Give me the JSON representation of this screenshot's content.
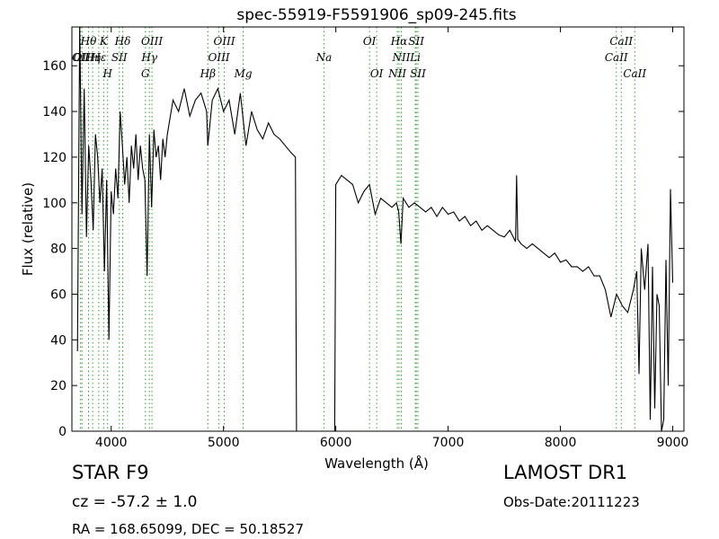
{
  "chart_data": {
    "type": "line",
    "title": "spec-55919-F5591906_sp09-245.fits",
    "xlabel": "Wavelength (Å)",
    "ylabel": "Flux (relative)",
    "xlim": [
      3650,
      9100
    ],
    "ylim": [
      0,
      177
    ],
    "xticks": [
      4000,
      5000,
      6000,
      7000,
      8000,
      9000
    ],
    "yticks": [
      0,
      20,
      40,
      60,
      80,
      100,
      120,
      140,
      160
    ],
    "grid": false,
    "legend": "none",
    "series": [
      {
        "color": "#000000",
        "x": [
          3700,
          3720,
          3740,
          3760,
          3780,
          3800,
          3820,
          3840,
          3860,
          3880,
          3900,
          3920,
          3940,
          3960,
          3980,
          4000,
          4020,
          4040,
          4060,
          4080,
          4100,
          4120,
          4140,
          4160,
          4180,
          4200,
          4220,
          4240,
          4260,
          4280,
          4300,
          4320,
          4340,
          4360,
          4380,
          4400,
          4420,
          4440,
          4460,
          4480,
          4500,
          4550,
          4600,
          4650,
          4700,
          4750,
          4800,
          4850,
          4860,
          4900,
          4950,
          5000,
          5050,
          5100,
          5150,
          5200,
          5250,
          5300,
          5350,
          5400,
          5450,
          5500,
          5550,
          5600,
          5640,
          5650,
          5660,
          5700,
          5800,
          5900,
          5980,
          5990,
          6000,
          6050,
          6100,
          6150,
          6200,
          6250,
          6300,
          6350,
          6400,
          6450,
          6500,
          6540,
          6560,
          6580,
          6600,
          6650,
          6700,
          6750,
          6800,
          6850,
          6900,
          6950,
          7000,
          7050,
          7100,
          7150,
          7200,
          7250,
          7300,
          7350,
          7400,
          7450,
          7500,
          7550,
          7600,
          7610,
          7620,
          7650,
          7700,
          7750,
          7800,
          7850,
          7900,
          7950,
          8000,
          8050,
          8100,
          8150,
          8200,
          8250,
          8300,
          8350,
          8400,
          8450,
          8500,
          8550,
          8600,
          8650,
          8680,
          8700,
          8720,
          8750,
          8780,
          8800,
          8820,
          8840,
          8860,
          8880,
          8900,
          8920,
          8940,
          8960,
          8980,
          9000
        ],
        "y": [
          35,
          178,
          95,
          150,
          85,
          125,
          110,
          88,
          130,
          120,
          100,
          115,
          70,
          110,
          40,
          105,
          95,
          115,
          102,
          140,
          125,
          108,
          120,
          100,
          125,
          115,
          130,
          110,
          125,
          115,
          110,
          68,
          130,
          98,
          132,
          120,
          125,
          110,
          128,
          120,
          130,
          145,
          140,
          150,
          138,
          145,
          148,
          140,
          125,
          145,
          150,
          140,
          145,
          130,
          148,
          125,
          140,
          132,
          128,
          135,
          130,
          128,
          125,
          122,
          120,
          0,
          0,
          0,
          0,
          0,
          0,
          0,
          108,
          112,
          110,
          108,
          100,
          105,
          108,
          95,
          102,
          100,
          98,
          100,
          96,
          82,
          102,
          98,
          100,
          98,
          96,
          98,
          94,
          98,
          95,
          96,
          92,
          94,
          90,
          92,
          88,
          90,
          88,
          86,
          85,
          88,
          83,
          112,
          84,
          82,
          80,
          82,
          80,
          78,
          76,
          78,
          74,
          75,
          72,
          72,
          70,
          72,
          68,
          68,
          62,
          50,
          60,
          55,
          52,
          62,
          70,
          25,
          80,
          62,
          82,
          5,
          72,
          10,
          60,
          55,
          0,
          5,
          75,
          20,
          106,
          65
        ]
      }
    ],
    "lines": [
      {
        "name": "OII",
        "x": 3727,
        "row": 2
      },
      {
        "name": "OII",
        "x": 3740,
        "row": 3
      },
      {
        "name": "Hθ",
        "x": 3798,
        "row": 1
      },
      {
        "name": "Hη",
        "x": 3835,
        "row": 3
      },
      {
        "name": "Hε",
        "x": 3889,
        "row": 2
      },
      {
        "name": "K",
        "x": 3933,
        "row": 1
      },
      {
        "name": "H",
        "x": 3968,
        "row": 4
      },
      {
        "name": "SII",
        "x": 4072,
        "row": 2
      },
      {
        "name": "Hδ",
        "x": 4102,
        "row": 1
      },
      {
        "name": "G",
        "x": 4305,
        "row": 4
      },
      {
        "name": "Hγ",
        "x": 4340,
        "row": 2
      },
      {
        "name": "OIII",
        "x": 4363,
        "row": 1
      },
      {
        "name": "Hβ",
        "x": 4861,
        "row": 4
      },
      {
        "name": "OIII",
        "x": 4959,
        "row": 3
      },
      {
        "name": "OIII",
        "x": 5007,
        "row": 1
      },
      {
        "name": "Mg",
        "x": 5175,
        "row": 4
      },
      {
        "name": "Na",
        "x": 5894,
        "row": 3
      },
      {
        "name": "OI",
        "x": 6300,
        "row": 1
      },
      {
        "name": "OI",
        "x": 6364,
        "row": 4
      },
      {
        "name": "NII",
        "x": 6548,
        "row": 4
      },
      {
        "name": "Hα",
        "x": 6563,
        "row": 1
      },
      {
        "name": "NII",
        "x": 6583,
        "row": 3
      },
      {
        "name": "Li",
        "x": 6708,
        "row": 3
      },
      {
        "name": "SII",
        "x": 6716,
        "row": 1
      },
      {
        "name": "SII",
        "x": 6731,
        "row": 4
      },
      {
        "name": "CaII",
        "x": 8498,
        "row": 3
      },
      {
        "name": "CaII",
        "x": 8542,
        "row": 1
      },
      {
        "name": "CaII",
        "x": 8662,
        "row": 4
      }
    ]
  },
  "info": {
    "object": "STAR   F9",
    "cz": "cz = -57.2 ± 1.0",
    "radec": "RA = 168.65099, DEC = 50.18527",
    "survey": "LAMOST DR1",
    "obs_date": "Obs-Date:20111223"
  },
  "colors": {
    "spectrum": "#000000",
    "line_markers": "#2ca02c"
  }
}
